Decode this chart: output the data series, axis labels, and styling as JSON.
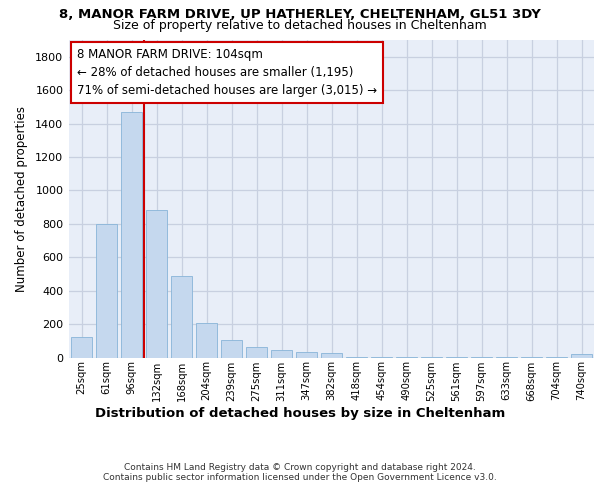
{
  "title_line1": "8, MANOR FARM DRIVE, UP HATHERLEY, CHELTENHAM, GL51 3DY",
  "title_line2": "Size of property relative to detached houses in Cheltenham",
  "xlabel": "Distribution of detached houses by size in Cheltenham",
  "ylabel": "Number of detached properties",
  "categories": [
    "25sqm",
    "61sqm",
    "96sqm",
    "132sqm",
    "168sqm",
    "204sqm",
    "239sqm",
    "275sqm",
    "311sqm",
    "347sqm",
    "382sqm",
    "418sqm",
    "454sqm",
    "490sqm",
    "525sqm",
    "561sqm",
    "597sqm",
    "633sqm",
    "668sqm",
    "704sqm",
    "740sqm"
  ],
  "values": [
    125,
    800,
    1470,
    880,
    490,
    205,
    105,
    65,
    45,
    35,
    25,
    3,
    2,
    1,
    1,
    1,
    1,
    1,
    1,
    1,
    20
  ],
  "bar_color": "#c5d8ee",
  "bar_edge_color": "#88b4d8",
  "grid_color": "#c8d0e0",
  "vline_color": "#cc0000",
  "annotation_text": "8 MANOR FARM DRIVE: 104sqm\n← 28% of detached houses are smaller (1,195)\n71% of semi-detached houses are larger (3,015) →",
  "ylim": [
    0,
    1900
  ],
  "yticks": [
    0,
    200,
    400,
    600,
    800,
    1000,
    1200,
    1400,
    1600,
    1800
  ],
  "footer_line1": "Contains HM Land Registry data © Crown copyright and database right 2024.",
  "footer_line2": "Contains public sector information licensed under the Open Government Licence v3.0.",
  "bg_color": "#e8eef8"
}
